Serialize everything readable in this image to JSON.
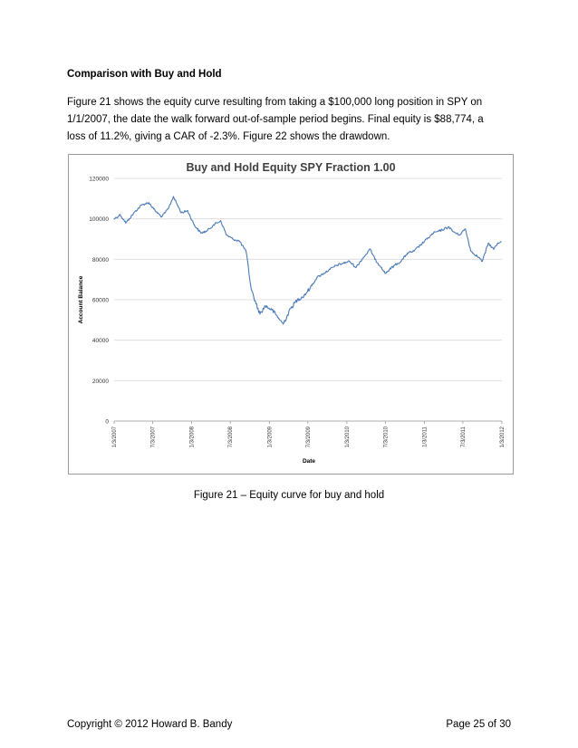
{
  "section": {
    "heading": "Comparison with Buy and Hold",
    "paragraph_lines": [
      "Figure 21 shows the equity curve resulting from taking a $100,000 long position in SPY on",
      "1/1/2007, the date the walk forward out-of-sample period begins.  Final equity is $88,774, a",
      "loss of 11.2%, giving a CAR of -2.3%.  Figure 22 shows the drawdown."
    ]
  },
  "figure": {
    "caption": "Figure 21 – Equity curve for buy and hold"
  },
  "chart_data": {
    "type": "line",
    "title": "Buy and Hold Equity SPY Fraction 1.00",
    "xlabel": "Date",
    "ylabel": "Account Balance",
    "ylim": [
      0,
      120000
    ],
    "y_ticks": [
      "0",
      "20000",
      "40000",
      "60000",
      "80000",
      "100000",
      "120000"
    ],
    "x_ticks": [
      "1/3/2007",
      "7/3/2007",
      "1/3/2008",
      "7/3/2008",
      "1/3/2009",
      "7/3/2009",
      "1/3/2010",
      "7/3/2010",
      "1/3/2011",
      "7/3/2011",
      "1/3/2012"
    ],
    "grid": "horizontal",
    "legend": "none",
    "line_color": "#4a7ab8",
    "series": [
      {
        "x": [
          "2007-01-03",
          "2007-02-01",
          "2007-02-27",
          "2007-03-15",
          "2007-04-15",
          "2007-05-15",
          "2007-06-15",
          "2007-07-15",
          "2007-08-15",
          "2007-09-15",
          "2007-10-09",
          "2007-11-15",
          "2007-12-15",
          "2008-01-15",
          "2008-02-15",
          "2008-03-15",
          "2008-04-15",
          "2008-05-19",
          "2008-06-15",
          "2008-07-15",
          "2008-08-15",
          "2008-09-15",
          "2008-10-10",
          "2008-11-01",
          "2008-11-20",
          "2008-12-15",
          "2009-01-15",
          "2009-02-15",
          "2009-03-09",
          "2009-04-15",
          "2009-05-15",
          "2009-06-15",
          "2009-07-15",
          "2009-08-15",
          "2009-09-15",
          "2009-10-15",
          "2009-11-15",
          "2009-12-15",
          "2010-01-15",
          "2010-02-15",
          "2010-03-15",
          "2010-04-23",
          "2010-05-15",
          "2010-06-15",
          "2010-07-02",
          "2010-08-15",
          "2010-09-15",
          "2010-10-15",
          "2010-11-15",
          "2010-12-15",
          "2011-01-15",
          "2011-02-15",
          "2011-03-15",
          "2011-04-29",
          "2011-05-15",
          "2011-06-15",
          "2011-07-15",
          "2011-08-10",
          "2011-09-15",
          "2011-10-03",
          "2011-10-31",
          "2011-11-25",
          "2011-12-15",
          "2011-12-30"
        ],
        "values": [
          100000,
          102000,
          98000,
          100000,
          104000,
          107000,
          108000,
          104000,
          101000,
          105000,
          111000,
          103000,
          104000,
          97000,
          93000,
          94000,
          97000,
          99000,
          92000,
          90000,
          89000,
          84000,
          65000,
          58000,
          53000,
          57000,
          55000,
          51000,
          48000,
          56000,
          60000,
          62000,
          66000,
          71000,
          73000,
          75000,
          77000,
          78000,
          79000,
          76000,
          80000,
          85000,
          80000,
          76000,
          73000,
          77000,
          79000,
          83000,
          84000,
          87000,
          90000,
          93000,
          94000,
          96000,
          94000,
          92000,
          95000,
          84000,
          81000,
          79000,
          88000,
          85000,
          88000,
          88774
        ]
      }
    ]
  },
  "footer": {
    "copyright": "Copyright © 2012 Howard B. Bandy",
    "page": "Page 25 of 30"
  }
}
